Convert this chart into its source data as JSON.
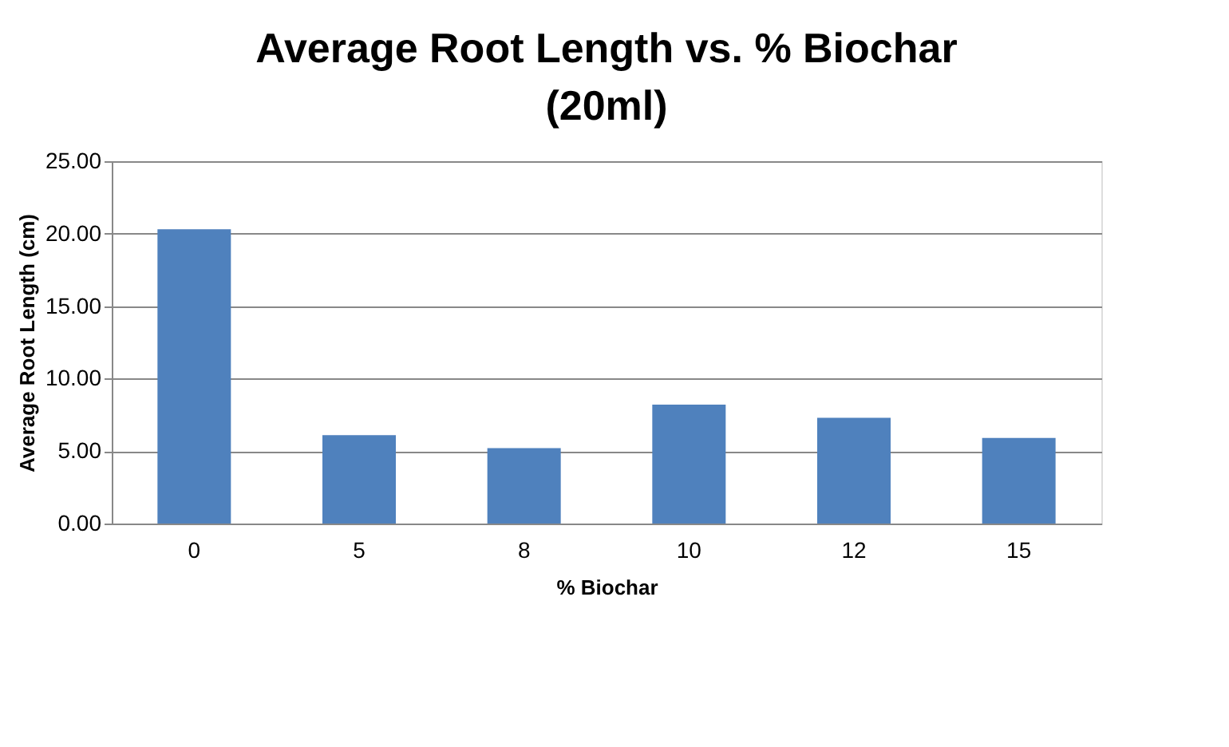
{
  "chart_data": {
    "type": "bar",
    "title": "Average Root Length vs. % Biochar\n(20ml)",
    "xlabel": "% Biochar",
    "ylabel": "Average Root Length (cm)",
    "categories": [
      "0",
      "5",
      "8",
      "10",
      "12",
      "15"
    ],
    "values": [
      20.3,
      6.1,
      5.2,
      8.2,
      7.3,
      5.9
    ],
    "color": "#4f81bd",
    "ylim": [
      0,
      25
    ],
    "yticks": [
      {
        "value": 0,
        "label": "0.00"
      },
      {
        "value": 5,
        "label": "5.00"
      },
      {
        "value": 10,
        "label": "10.00"
      },
      {
        "value": 15,
        "label": "15.00"
      },
      {
        "value": 20,
        "label": "20.00"
      },
      {
        "value": 25,
        "label": "25.00"
      }
    ],
    "grid": "y"
  }
}
